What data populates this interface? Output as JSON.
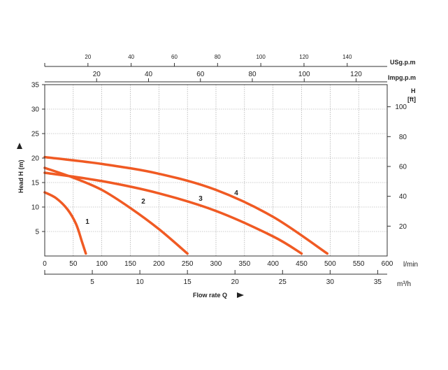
{
  "chart_data": {
    "type": "line",
    "xlabel": "Flow rate Q",
    "ylabel": "Head H (m)",
    "xlim": [
      0,
      600
    ],
    "ylim": [
      0,
      35
    ],
    "grid": true,
    "colors": {
      "curve": "#f05a23",
      "grid": "#9a9a9a",
      "axis": "#333333"
    },
    "x_ticks": [
      "0",
      "50",
      "100",
      "150",
      "200",
      "250",
      "300",
      "350",
      "400",
      "450",
      "500",
      "550",
      "600"
    ],
    "x_unit": "l/min",
    "y_ticks": [
      "5",
      "10",
      "15",
      "20",
      "25",
      "30",
      "35"
    ],
    "m3h_axis": {
      "unit": "m³/h",
      "ticks": [
        "5",
        "10",
        "15",
        "20",
        "25",
        "30",
        "35"
      ]
    },
    "ft_axis": {
      "label": "H",
      "unit": "[ft]",
      "ticks": [
        "20",
        "40",
        "60",
        "80",
        "100"
      ]
    },
    "usgpm_axis": {
      "unit": "USg.p.m",
      "ticks": [
        "20",
        "40",
        "60",
        "80",
        "100",
        "120",
        "140"
      ]
    },
    "impgpm_axis": {
      "unit": "Impg.p.m",
      "ticks": [
        "20",
        "40",
        "60",
        "80",
        "100",
        "120"
      ]
    },
    "series": [
      {
        "name": "1",
        "x": [
          0,
          20,
          40,
          55,
          65,
          72
        ],
        "y": [
          13,
          11.8,
          9.5,
          6.5,
          3,
          0.5
        ]
      },
      {
        "name": "2",
        "x": [
          0,
          50,
          100,
          150,
          200,
          250
        ],
        "y": [
          18,
          16,
          13.5,
          9.8,
          5.5,
          0.5
        ]
      },
      {
        "name": "3",
        "x": [
          0,
          100,
          200,
          300,
          400,
          450
        ],
        "y": [
          17,
          15.3,
          12.8,
          9.2,
          4,
          0.5
        ]
      },
      {
        "name": "4",
        "x": [
          0,
          100,
          200,
          300,
          400,
          495
        ],
        "y": [
          20.2,
          18.8,
          16.8,
          13.5,
          8,
          0.5
        ]
      }
    ]
  }
}
